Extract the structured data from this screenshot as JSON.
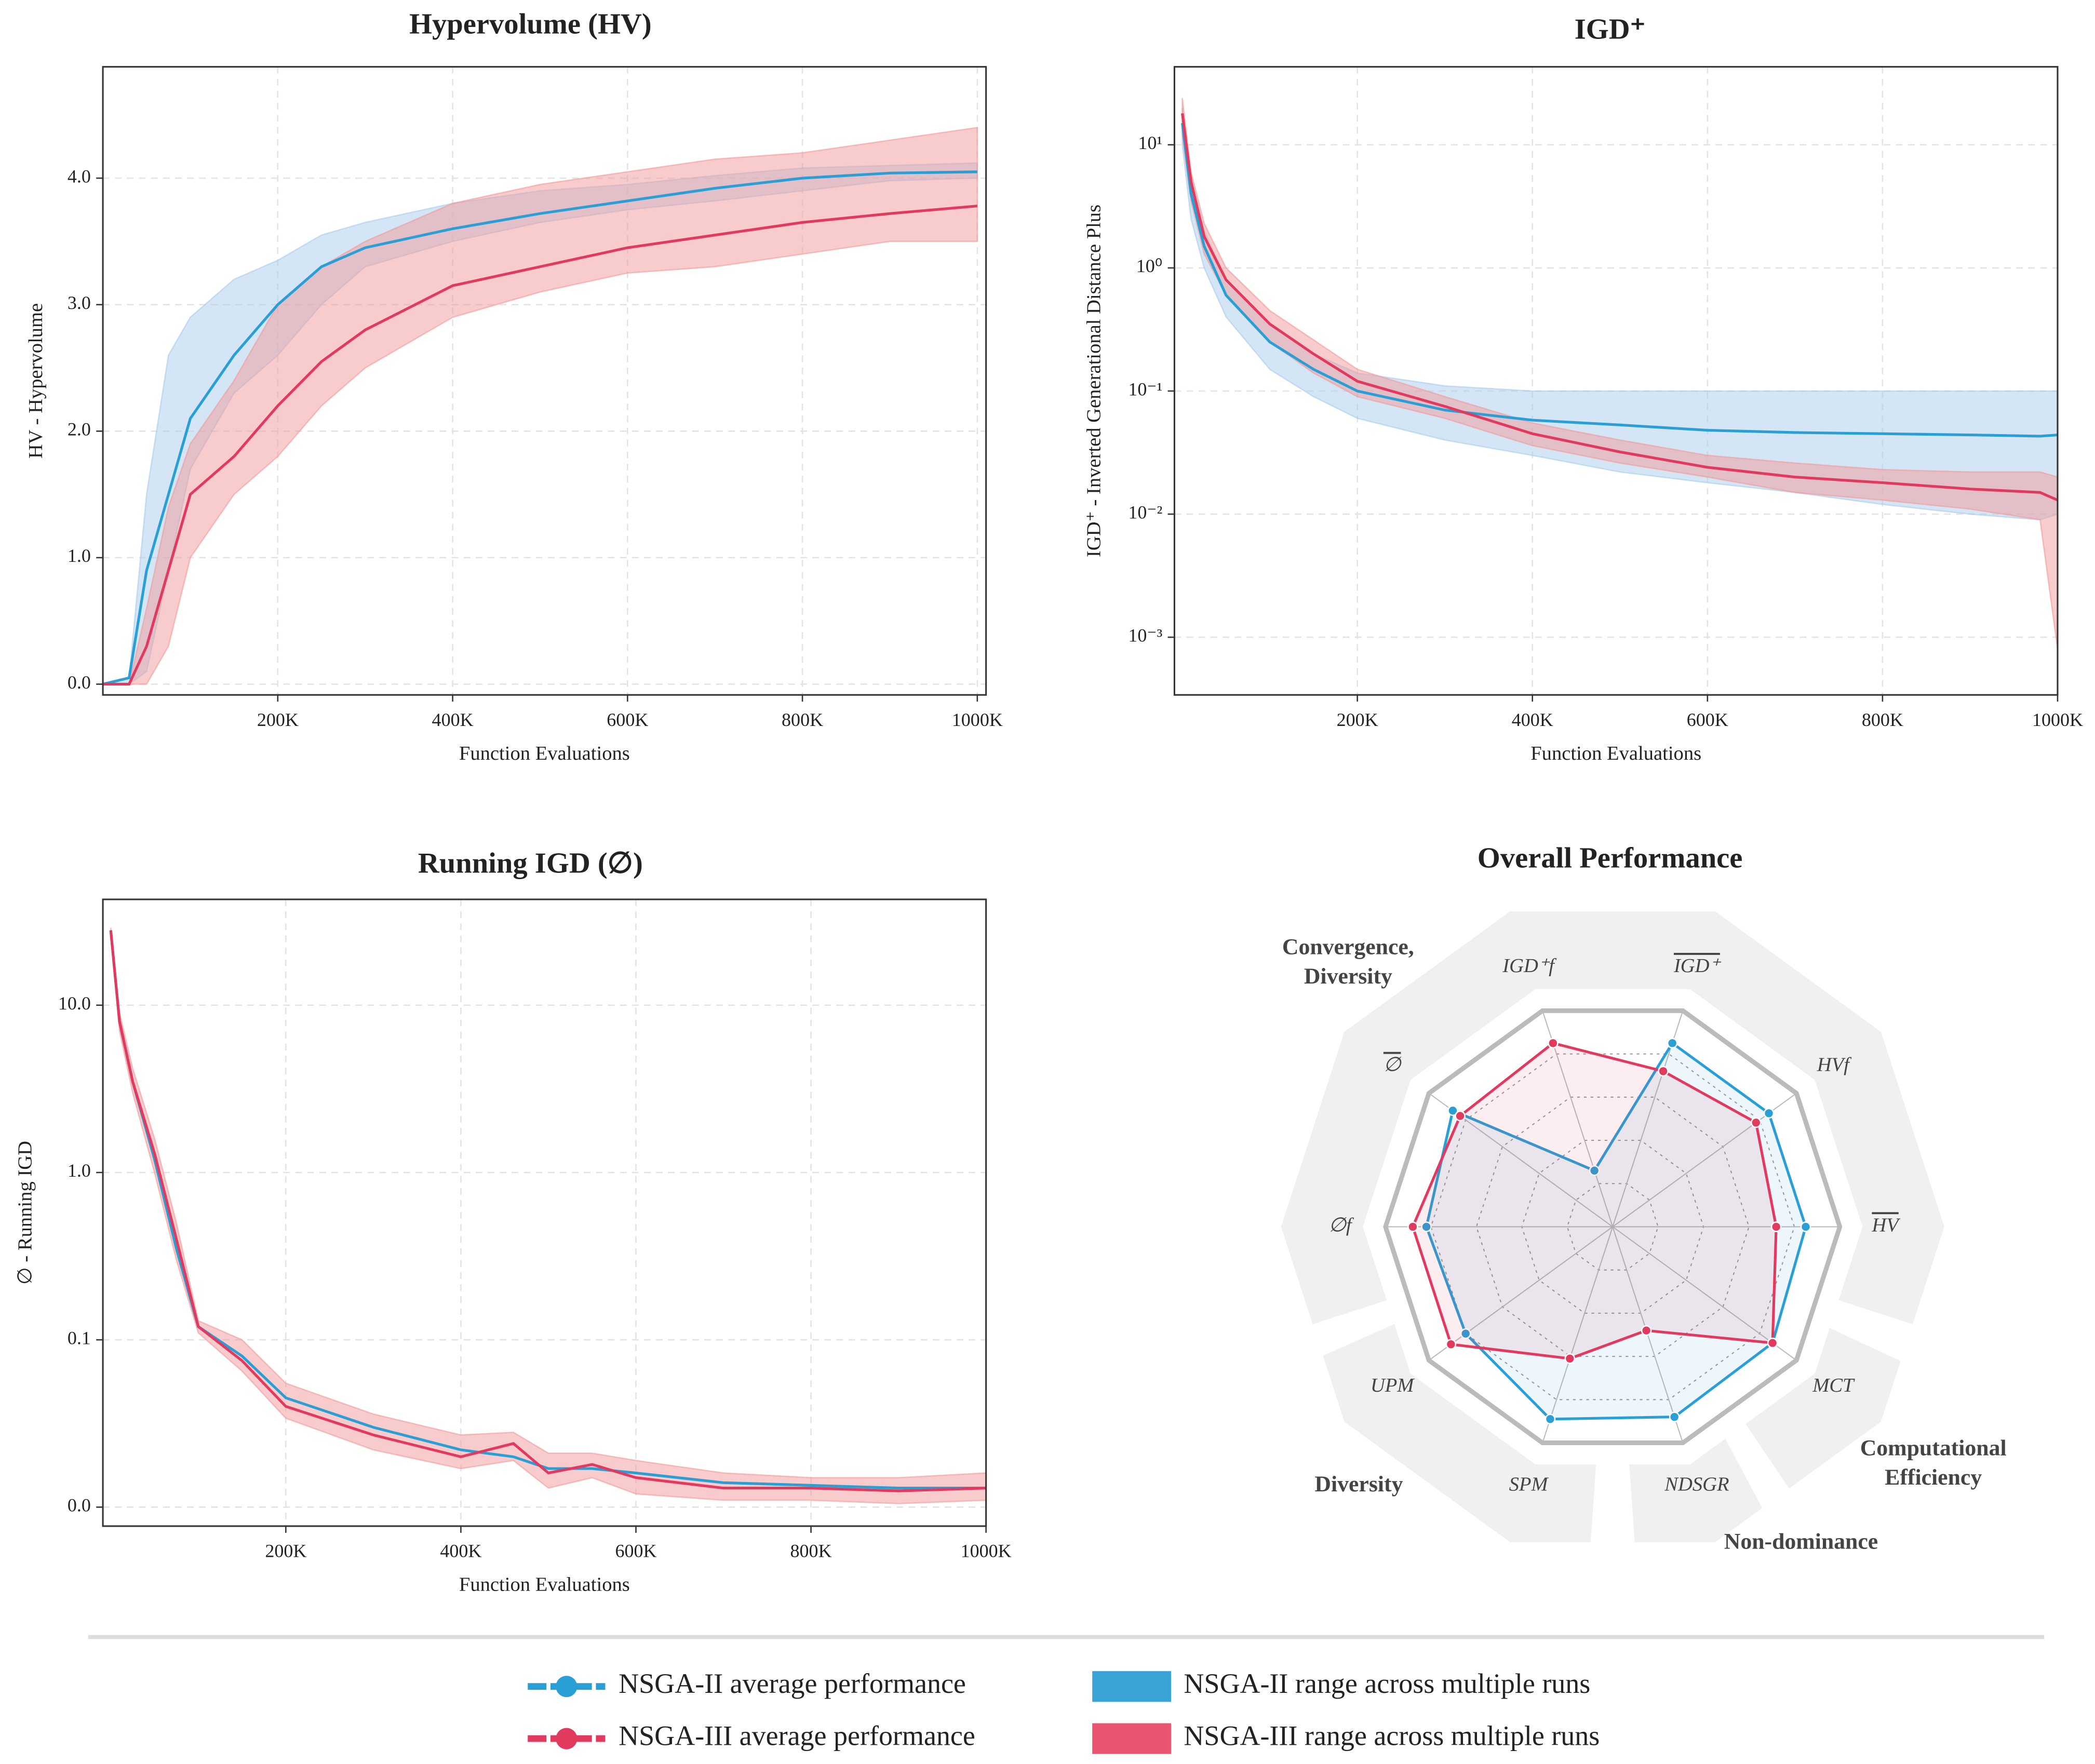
{
  "chart_data": [
    {
      "type": "line",
      "title": "Hypervolume (HV)",
      "xlabel": "Function Evaluations",
      "ylabel": "HV - Hypervolume",
      "xlim": [
        0,
        1010000
      ],
      "ylim": [
        -0.085,
        4.88
      ],
      "grid": true,
      "xticks": [
        {
          "value": 200000,
          "label": "200K"
        },
        {
          "value": 400000,
          "label": "400K"
        },
        {
          "value": 600000,
          "label": "600K"
        },
        {
          "value": 800000,
          "label": "800K"
        },
        {
          "value": 1000000,
          "label": "1000K"
        }
      ],
      "yticks": [
        {
          "value": 0,
          "label": "0.0"
        },
        {
          "value": 1,
          "label": "1.0"
        },
        {
          "value": 2,
          "label": "2.0"
        },
        {
          "value": 3,
          "label": "3.0"
        },
        {
          "value": 4,
          "label": "4.0"
        }
      ],
      "x": [
        0,
        30000,
        50000,
        75000,
        100000,
        150000,
        200000,
        250000,
        300000,
        400000,
        500000,
        600000,
        700000,
        800000,
        900000,
        1000000
      ],
      "series": [
        {
          "color": "#2a9fd6",
          "band_color": "#a9cbec",
          "values": [
            0,
            0.05,
            0.9,
            1.5,
            2.1,
            2.6,
            3.0,
            3.3,
            3.45,
            3.6,
            3.72,
            3.82,
            3.92,
            4.0,
            4.04,
            4.05
          ],
          "lower": [
            0,
            0,
            0.1,
            0.9,
            1.7,
            2.3,
            2.6,
            3.0,
            3.3,
            3.5,
            3.65,
            3.75,
            3.82,
            3.9,
            3.98,
            4.0
          ],
          "upper": [
            0,
            0.05,
            1.5,
            2.6,
            2.9,
            3.2,
            3.35,
            3.55,
            3.65,
            3.8,
            3.9,
            3.95,
            4.02,
            4.08,
            4.1,
            4.12
          ]
        },
        {
          "color": "#e23a5e",
          "band_color": "#f19a9a",
          "values": [
            0,
            0,
            0.3,
            0.9,
            1.5,
            1.8,
            2.2,
            2.55,
            2.8,
            3.15,
            3.3,
            3.45,
            3.55,
            3.65,
            3.72,
            3.78
          ],
          "lower": [
            0,
            0,
            0,
            0.3,
            1.0,
            1.5,
            1.8,
            2.2,
            2.5,
            2.9,
            3.1,
            3.25,
            3.3,
            3.4,
            3.5,
            3.5
          ],
          "upper": [
            0,
            0,
            0.6,
            1.4,
            1.9,
            2.4,
            3.0,
            3.3,
            3.5,
            3.8,
            3.95,
            4.05,
            4.15,
            4.2,
            4.3,
            4.4
          ]
        }
      ]
    },
    {
      "type": "line",
      "title": "IGD⁺",
      "xlabel": "Function Evaluations",
      "ylabel": "IGD⁺ - Inverted Generational Distance Plus",
      "xlim": [
        -9000,
        1000000
      ],
      "ylim": [
        0.00034,
        43
      ],
      "yscale": "log",
      "grid": true,
      "xticks": [
        {
          "value": 200000,
          "label": "200K"
        },
        {
          "value": 400000,
          "label": "400K"
        },
        {
          "value": 600000,
          "label": "600K"
        },
        {
          "value": 800000,
          "label": "800K"
        },
        {
          "value": 1000000,
          "label": "1000K"
        }
      ],
      "yticks": [
        {
          "value": 0.001,
          "label": "10⁻³"
        },
        {
          "value": 0.01,
          "label": "10⁻²"
        },
        {
          "value": 0.1,
          "label": "10⁻¹"
        },
        {
          "value": 1,
          "label": "10⁰"
        },
        {
          "value": 10,
          "label": "10¹"
        }
      ],
      "x": [
        0,
        10000,
        25000,
        50000,
        100000,
        150000,
        200000,
        300000,
        400000,
        500000,
        600000,
        700000,
        800000,
        900000,
        980000,
        1000000
      ],
      "series": [
        {
          "color": "#2a9fd6",
          "band_color": "#a9cbec",
          "values": [
            15,
            4,
            1.5,
            0.6,
            0.25,
            0.15,
            0.1,
            0.07,
            0.058,
            0.053,
            0.048,
            0.046,
            0.045,
            0.044,
            0.043,
            0.044
          ],
          "lower": [
            10,
            2.5,
            1.0,
            0.4,
            0.15,
            0.09,
            0.06,
            0.04,
            0.03,
            0.022,
            0.018,
            0.015,
            0.012,
            0.01,
            0.009,
            0.01
          ],
          "upper": [
            20,
            5,
            2.0,
            0.8,
            0.35,
            0.2,
            0.14,
            0.11,
            0.1,
            0.1,
            0.1,
            0.1,
            0.1,
            0.1,
            0.1,
            0.1
          ]
        },
        {
          "color": "#e23a5e",
          "band_color": "#f19a9a",
          "values": [
            18,
            5,
            1.8,
            0.8,
            0.35,
            0.2,
            0.12,
            0.075,
            0.045,
            0.032,
            0.024,
            0.02,
            0.018,
            0.016,
            0.015,
            0.013
          ],
          "lower": [
            12,
            3.5,
            1.3,
            0.6,
            0.25,
            0.14,
            0.09,
            0.06,
            0.036,
            0.026,
            0.02,
            0.015,
            0.013,
            0.011,
            0.009,
            0.0008
          ],
          "upper": [
            24,
            6,
            2.3,
            1.0,
            0.45,
            0.26,
            0.15,
            0.09,
            0.055,
            0.04,
            0.03,
            0.026,
            0.023,
            0.022,
            0.022,
            0.02
          ]
        }
      ]
    },
    {
      "type": "line",
      "title": "Running IGD (∅)",
      "xlabel": "Function Evaluations",
      "ylabel": "∅ - Running IGD",
      "xlim": [
        -9000,
        1000000
      ],
      "ylim": [
        0.0077,
        42.9
      ],
      "yscale": "log",
      "grid": true,
      "xticks": [
        {
          "value": 200000,
          "label": "200K"
        },
        {
          "value": 400000,
          "label": "400K"
        },
        {
          "value": 600000,
          "label": "600K"
        },
        {
          "value": 800000,
          "label": "800K"
        },
        {
          "value": 1000000,
          "label": "1000K"
        }
      ],
      "yticks": [
        {
          "value": 0.01,
          "label": "0.0"
        },
        {
          "value": 0.1,
          "label": "0.1"
        },
        {
          "value": 1,
          "label": "1.0"
        },
        {
          "value": 10,
          "label": "10.0"
        }
      ],
      "x": [
        0,
        10000,
        25000,
        50000,
        75000,
        100000,
        150000,
        200000,
        300000,
        400000,
        460000,
        500000,
        550000,
        600000,
        700000,
        800000,
        900000,
        1000000
      ],
      "series": [
        {
          "color": "#2a9fd6",
          "values": [
            28,
            8,
            3.5,
            1.2,
            0.35,
            0.12,
            0.08,
            0.045,
            0.03,
            0.022,
            0.02,
            0.017,
            0.017,
            0.016,
            0.014,
            0.0135,
            0.013,
            0.013
          ]
        },
        {
          "color": "#e23a5e",
          "band_color": "#f19a9a",
          "values": [
            28,
            8,
            3.5,
            1.3,
            0.4,
            0.12,
            0.075,
            0.04,
            0.027,
            0.02,
            0.024,
            0.016,
            0.018,
            0.015,
            0.013,
            0.013,
            0.0125,
            0.013
          ],
          "lower": [
            27,
            7,
            3.0,
            1.0,
            0.3,
            0.11,
            0.065,
            0.034,
            0.022,
            0.017,
            0.019,
            0.013,
            0.015,
            0.012,
            0.011,
            0.011,
            0.0105,
            0.011
          ],
          "upper": [
            29,
            9,
            4.2,
            1.6,
            0.5,
            0.13,
            0.1,
            0.055,
            0.036,
            0.027,
            0.028,
            0.021,
            0.021,
            0.019,
            0.016,
            0.015,
            0.015,
            0.016
          ]
        }
      ]
    },
    {
      "type": "radar",
      "title": "Overall Performance",
      "rlim": [
        0,
        1
      ],
      "categories": [
        "IGD⁺f",
        "IGD⁺",
        "HVf",
        "HV",
        "MCT",
        "NDSGR",
        "SPM",
        "UPM",
        "∅f",
        "∅"
      ],
      "overline": [
        false,
        true,
        false,
        true,
        false,
        false,
        false,
        false,
        false,
        true
      ],
      "groups": [
        "Convergence, Diversity",
        "Computational Efficiency",
        "Non-dominance",
        "Diversity"
      ],
      "series": [
        {
          "color": "#2a9fd6",
          "values": [
            0.26,
            0.85,
            0.85,
            0.85,
            0.87,
            0.88,
            0.89,
            0.8,
            0.82,
            0.87
          ]
        },
        {
          "color": "#e23a5e",
          "values": [
            0.85,
            0.72,
            0.78,
            0.72,
            0.87,
            0.48,
            0.61,
            0.88,
            0.88,
            0.83
          ]
        }
      ]
    }
  ],
  "legend": {
    "items": [
      {
        "label": "NSGA-II average performance",
        "color": "#2a9fd6",
        "kind": "line"
      },
      {
        "label": "NSGA-III average performance",
        "color": "#e23a5e",
        "kind": "line"
      },
      {
        "label": "NSGA-II range across multiple runs",
        "color": "#3aa3d6",
        "kind": "patch"
      },
      {
        "label": "NSGA-III range across multiple runs",
        "color": "#ea5470",
        "kind": "patch"
      }
    ]
  }
}
